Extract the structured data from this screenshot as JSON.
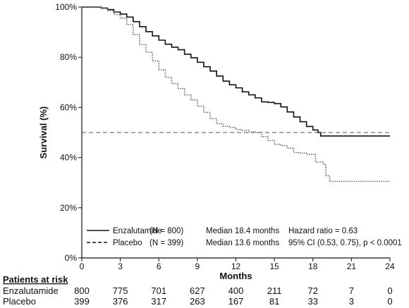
{
  "chart_data": {
    "type": "line",
    "title": "",
    "xlabel": "Months",
    "ylabel": "Survival (%)",
    "xlim": [
      0,
      24
    ],
    "ylim": [
      0,
      100
    ],
    "x_ticks": [
      0,
      3,
      6,
      9,
      12,
      15,
      18,
      21,
      24
    ],
    "y_ticks": [
      0,
      20,
      40,
      60,
      80,
      100
    ],
    "y_tick_labels": [
      "0%",
      "20%",
      "40%",
      "60%",
      "80%",
      "100%"
    ],
    "grid": false,
    "reference_line": {
      "y": 50,
      "style": "dashed"
    },
    "series": [
      {
        "name": "Enzalutamide",
        "style": "solid",
        "color": "#111111",
        "x": [
          0,
          1,
          1.5,
          2,
          2.5,
          3,
          3.5,
          4,
          4.5,
          5,
          5.5,
          6,
          6.5,
          7,
          7.5,
          8,
          8.5,
          9,
          9.5,
          10,
          10.5,
          11,
          11.5,
          12,
          12.5,
          13,
          13.5,
          14,
          14.5,
          15,
          15.5,
          16,
          16.5,
          17,
          17.5,
          18,
          18.4,
          18.6,
          19,
          24
        ],
        "y": [
          100,
          100,
          99.6,
          99,
          98,
          97.2,
          96,
          94.2,
          92.2,
          90.2,
          88.5,
          86.8,
          85.2,
          84,
          83,
          81.2,
          79.8,
          78,
          76.2,
          74.5,
          72.5,
          70.5,
          69,
          67.8,
          66.2,
          65,
          63.8,
          62.2,
          62,
          61.5,
          60.2,
          58.2,
          56.2,
          54.3,
          52.4,
          51,
          50,
          48.6,
          48.6,
          48.6
        ]
      },
      {
        "name": "Placebo",
        "style": "dotted",
        "color": "#666666",
        "x": [
          0,
          1,
          1.5,
          2,
          2.5,
          3,
          3.5,
          4,
          4.5,
          5,
          5.5,
          6,
          6.5,
          7,
          7.5,
          8,
          8.5,
          9,
          9.5,
          10,
          10.5,
          11,
          11.5,
          12,
          12.5,
          13,
          13.6,
          14,
          14.5,
          15,
          15.5,
          16,
          16.5,
          17,
          17.5,
          18,
          18.2,
          18.8,
          19,
          19.3,
          19.6,
          24
        ],
        "y": [
          100,
          100,
          99.6,
          98.5,
          97,
          95.5,
          93,
          89,
          85,
          82,
          78.5,
          75,
          72,
          69.5,
          67.5,
          65,
          63,
          60.5,
          58,
          55.5,
          53.5,
          52.5,
          52,
          51.2,
          50.8,
          50.2,
          50,
          48.3,
          46.8,
          45.3,
          44.8,
          43.8,
          42,
          41.8,
          41.3,
          41.3,
          38.2,
          37.3,
          32.8,
          30.5,
          30.5,
          30.5
        ]
      }
    ],
    "legend": {
      "placement": "bottom-center",
      "entries": [
        {
          "label": "Enzalutamide",
          "n": "(N = 800)",
          "median": "Median 18.4 months",
          "stat": "Hazard ratio = 0.63"
        },
        {
          "label": "Placebo",
          "n": "(N = 399)",
          "median": "Median 13.6 months",
          "stat": "95% CI (0.53, 0.75), p < 0.0001"
        }
      ]
    },
    "risk_table": {
      "header": "Patients at risk",
      "rows": [
        {
          "label": "Enzalutamide",
          "values": [
            "800",
            "775",
            "701",
            "627",
            "400",
            "211",
            "72",
            "7",
            "0"
          ]
        },
        {
          "label": "Placebo",
          "values": [
            "399",
            "376",
            "317",
            "263",
            "167",
            "81",
            "33",
            "3",
            "0"
          ]
        }
      ]
    }
  }
}
